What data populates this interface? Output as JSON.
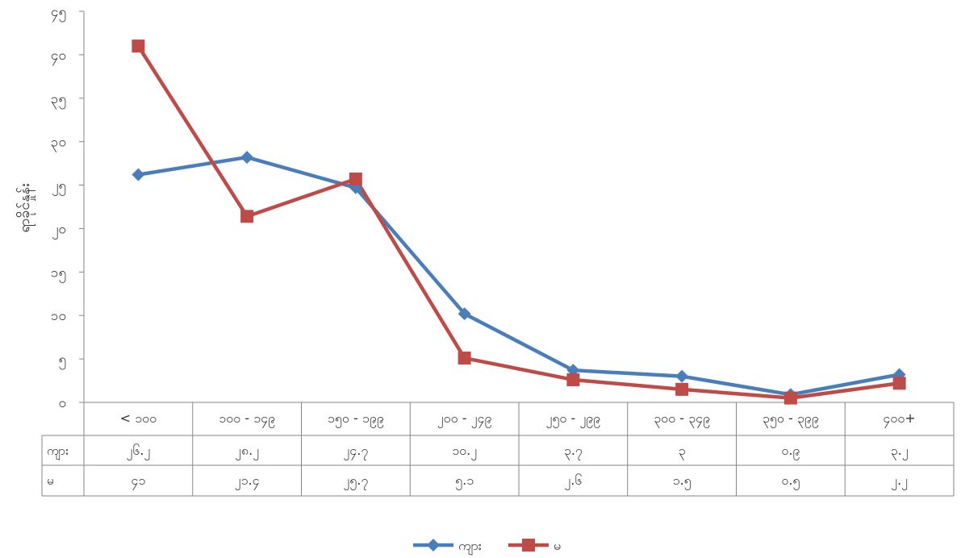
{
  "chart_data": {
    "type": "line",
    "ylabel": "ရာခိုင်နှုန်း",
    "ylim": [
      0,
      45
    ],
    "ytick_labels": [
      "၀",
      "၅",
      "၁၀",
      "၁၅",
      "၂၀",
      "၂၅",
      "၃၀",
      "၃၅",
      "၄၀",
      "၄၅"
    ],
    "categories": [
      "< ၁၀၀",
      "၁၀၀ - ၁၄၉",
      "၁၅၀ - ၁၉၉",
      "၂၀၀ - ၂၄၉",
      "၂၅၀ - ၂၉၉",
      "၃၀၀ - ၃၄၉",
      "၃၅၀ - ၃၉၉",
      "၄၀၀+"
    ],
    "grid": false,
    "legend_position": "bottom",
    "series": [
      {
        "name": "ကျား",
        "color": "#4a7ebb",
        "marker": "diamond",
        "values": [
          26.2,
          28.2,
          24.7,
          10.2,
          3.7,
          3.0,
          0.9,
          3.2
        ],
        "labels": [
          "၂၆.၂",
          "၂၈.၂",
          "၂၄.၇",
          "၁၀.၂",
          "၃.၇",
          "၃",
          "၀.၉",
          "၃.၂"
        ]
      },
      {
        "name": "မ",
        "color": "#be4b48",
        "marker": "square",
        "values": [
          41.0,
          21.4,
          25.7,
          5.1,
          2.6,
          1.5,
          0.5,
          2.2
        ],
        "labels": [
          "၄၁",
          "၂၁.၄",
          "၂၅.၇",
          "၅.၁",
          "၂.၆",
          "၁.၅",
          "၀.၅",
          "၂.၂"
        ]
      }
    ]
  }
}
